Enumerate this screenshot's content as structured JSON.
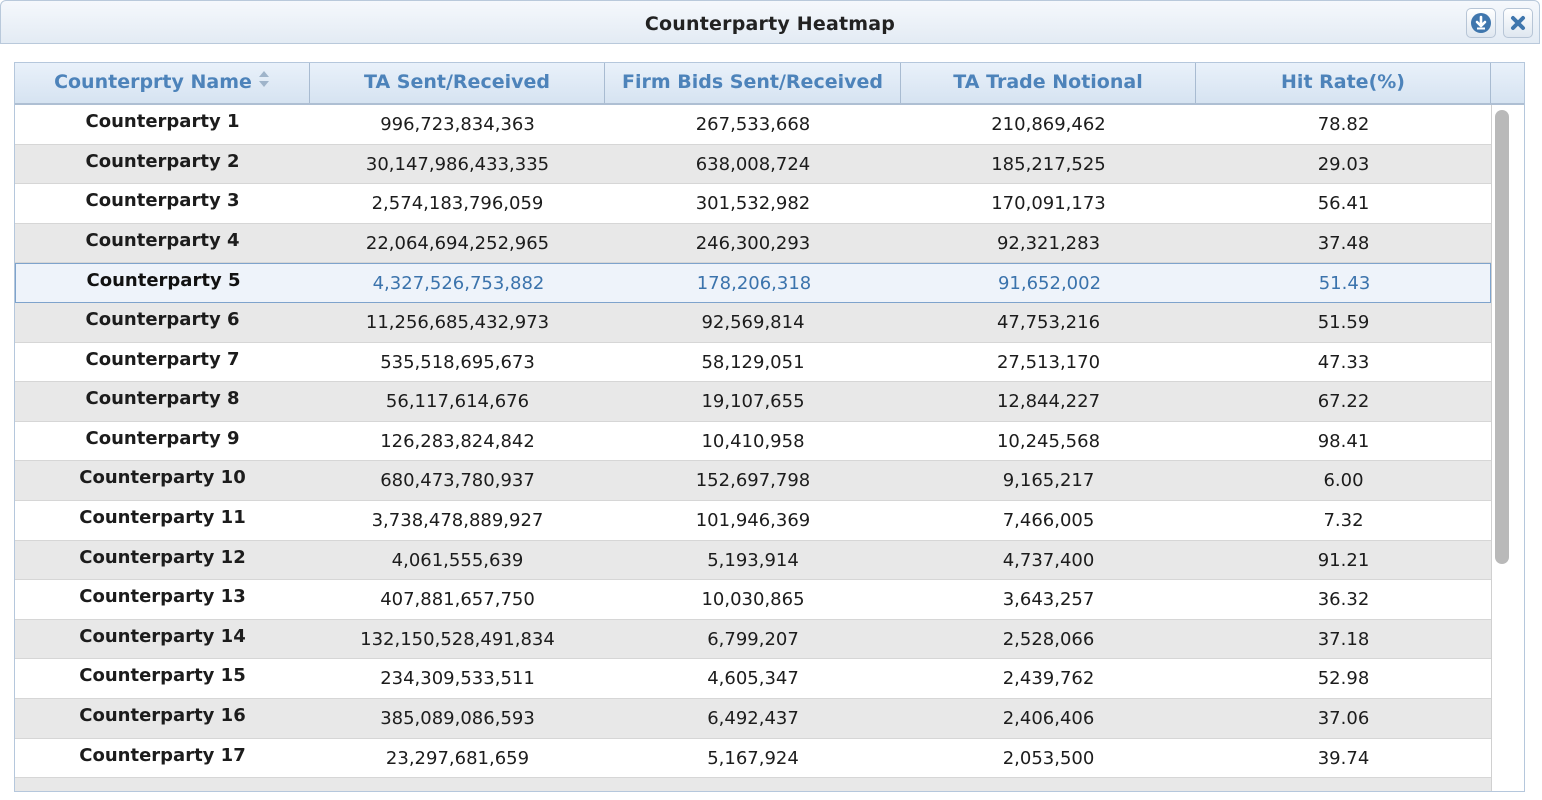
{
  "window": {
    "title": "Counterparty Heatmap",
    "icons": {
      "download": "download-circle-icon",
      "close": "close-x-icon"
    }
  },
  "table": {
    "columns": [
      "Counterprty Name",
      "TA Sent/Received",
      "Firm Bids Sent/Received",
      "TA Trade Notional",
      "Hit Rate(%)"
    ],
    "sorted_column": "Counterprty Name",
    "selected_row": 5,
    "rows": [
      [
        "Counterparty 1",
        "996,723,834,363",
        "267,533,668",
        "210,869,462",
        "78.82"
      ],
      [
        "Counterparty 2",
        "30,147,986,433,335",
        "638,008,724",
        "185,217,525",
        "29.03"
      ],
      [
        "Counterparty 3",
        "2,574,183,796,059",
        "301,532,982",
        "170,091,173",
        "56.41"
      ],
      [
        "Counterparty 4",
        "22,064,694,252,965",
        "246,300,293",
        "92,321,283",
        "37.48"
      ],
      [
        "Counterparty 5",
        "4,327,526,753,882",
        "178,206,318",
        "91,652,002",
        "51.43"
      ],
      [
        "Counterparty 6",
        "11,256,685,432,973",
        "92,569,814",
        "47,753,216",
        "51.59"
      ],
      [
        "Counterparty 7",
        "535,518,695,673",
        "58,129,051",
        "27,513,170",
        "47.33"
      ],
      [
        "Counterparty 8",
        "56,117,614,676",
        "19,107,655",
        "12,844,227",
        "67.22"
      ],
      [
        "Counterparty 9",
        "126,283,824,842",
        "10,410,958",
        "10,245,568",
        "98.41"
      ],
      [
        "Counterparty 10",
        "680,473,780,937",
        "152,697,798",
        "9,165,217",
        "6.00"
      ],
      [
        "Counterparty 11",
        "3,738,478,889,927",
        "101,946,369",
        "7,466,005",
        "7.32"
      ],
      [
        "Counterparty 12",
        "4,061,555,639",
        "5,193,914",
        "4,737,400",
        "91.21"
      ],
      [
        "Counterparty 13",
        "407,881,657,750",
        "10,030,865",
        "3,643,257",
        "36.32"
      ],
      [
        "Counterparty 14",
        "132,150,528,491,834",
        "6,799,207",
        "2,528,066",
        "37.18"
      ],
      [
        "Counterparty 15",
        "234,309,533,511",
        "4,605,347",
        "2,439,762",
        "52.98"
      ],
      [
        "Counterparty 16",
        "385,089,086,593",
        "6,492,437",
        "2,406,406",
        "37.06"
      ],
      [
        "Counterparty 17",
        "23,297,681,659",
        "5,167,924",
        "2,053,500",
        "39.74"
      ]
    ]
  },
  "colors": {
    "header_text": "#4d83ba",
    "selected_text": "#3b73ac",
    "row_alt": "#e8e8e8",
    "selected_border": "#7ea3cc"
  }
}
